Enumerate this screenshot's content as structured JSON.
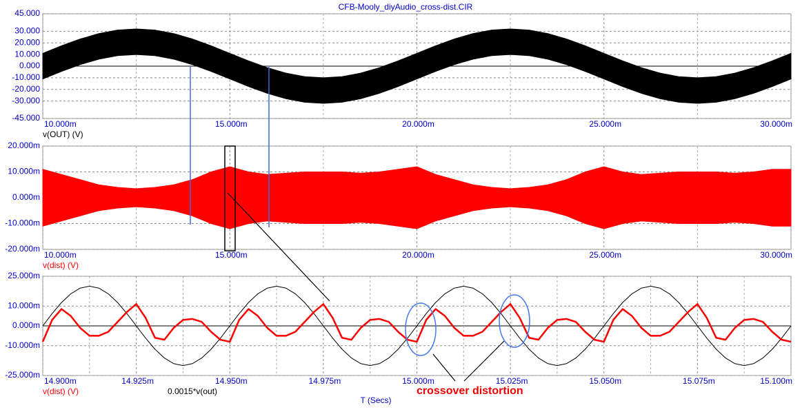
{
  "chart_data": [
    {
      "type": "band",
      "title": "CFB-Mooly_diyAudio_cross-dist.CIR",
      "x": [
        0.01,
        0.0105,
        0.011,
        0.0115,
        0.012,
        0.0125,
        0.013,
        0.0135,
        0.014,
        0.0145,
        0.015,
        0.0155,
        0.016,
        0.0165,
        0.017,
        0.0175,
        0.018,
        0.0185,
        0.019,
        0.0195,
        0.02,
        0.0205,
        0.021,
        0.0215,
        0.022,
        0.0225,
        0.023,
        0.0235,
        0.024,
        0.0245,
        0.025,
        0.0255,
        0.026,
        0.0265,
        0.027,
        0.0275,
        0.028,
        0.0285,
        0.029,
        0.0295,
        0.03
      ],
      "xlim": [
        0.01,
        0.03
      ],
      "xticks": [
        {
          "value": 0.01,
          "label": "10.000m"
        },
        {
          "value": 0.015,
          "label": "15.000m"
        },
        {
          "value": 0.02,
          "label": "20.000m"
        },
        {
          "value": 0.025,
          "label": "25.000m"
        },
        {
          "value": 0.03,
          "label": "30.000m"
        }
      ],
      "ylim": [
        -45,
        45
      ],
      "yticks": [
        {
          "value": 45,
          "label": "45.000"
        },
        {
          "value": 30,
          "label": "30.000"
        },
        {
          "value": 20,
          "label": "20.000"
        },
        {
          "value": 10,
          "label": "10.000"
        },
        {
          "value": 0,
          "label": "0.000"
        },
        {
          "value": -10,
          "label": "-10.000"
        },
        {
          "value": -20,
          "label": "-20.000"
        },
        {
          "value": -30,
          "label": "-30.000"
        },
        {
          "value": -45,
          "label": "-45.000"
        }
      ],
      "grid": true,
      "series": [
        {
          "name": "v(OUT) (V)",
          "color": "#000000",
          "upper": [
            11,
            17.5,
            23.3,
            28,
            31,
            32,
            31,
            28,
            23.3,
            17.5,
            11,
            4.5,
            -1.3,
            -6,
            -9,
            -10,
            -9,
            -6,
            -1.3,
            4.5,
            11,
            17.5,
            23.3,
            28,
            31,
            32,
            31,
            28,
            23.3,
            17.5,
            11,
            4.5,
            -1.3,
            -6,
            -9,
            -10,
            -9,
            -6,
            -1.3,
            4.5,
            11
          ],
          "lower": [
            -11,
            -4.5,
            1.3,
            6,
            9,
            10,
            9,
            6,
            1.3,
            -4.5,
            -11,
            -17.5,
            -23.3,
            -28,
            -31,
            -32,
            -31,
            -28,
            -23.3,
            -17.5,
            -11,
            -4.5,
            1.3,
            6,
            9,
            10,
            9,
            6,
            1.3,
            -4.5,
            -11,
            -17.5,
            -23.3,
            -28,
            -31,
            -32,
            -31,
            -28,
            -23.3,
            -17.5,
            -11
          ]
        }
      ]
    },
    {
      "type": "band",
      "x": [
        0.01,
        0.0105,
        0.011,
        0.0115,
        0.012,
        0.0125,
        0.013,
        0.0135,
        0.014,
        0.0145,
        0.015,
        0.0155,
        0.016,
        0.0165,
        0.017,
        0.0175,
        0.018,
        0.0185,
        0.019,
        0.0195,
        0.02,
        0.0205,
        0.021,
        0.0215,
        0.022,
        0.0225,
        0.023,
        0.0235,
        0.024,
        0.0245,
        0.025,
        0.0255,
        0.026,
        0.0265,
        0.027,
        0.0275,
        0.028,
        0.0285,
        0.029,
        0.0295,
        0.03
      ],
      "xlim": [
        0.01,
        0.03
      ],
      "xticks": [
        {
          "value": 0.01,
          "label": "10.000m"
        },
        {
          "value": 0.015,
          "label": "15.000m"
        },
        {
          "value": 0.02,
          "label": "20.000m"
        },
        {
          "value": 0.025,
          "label": "25.000m"
        },
        {
          "value": 0.03,
          "label": "30.000m"
        }
      ],
      "ylim": [
        -0.02,
        0.02
      ],
      "yticks": [
        {
          "value": 0.02,
          "label": "20.000m"
        },
        {
          "value": 0.01,
          "label": "10.000m"
        },
        {
          "value": 0,
          "label": "0.000m"
        },
        {
          "value": -0.01,
          "label": "-10.000m"
        },
        {
          "value": -0.02,
          "label": "-20.000m"
        }
      ],
      "grid": true,
      "series": [
        {
          "name": "v(dist) (V)",
          "color": "#ff0000",
          "upper": [
            0.011,
            0.009,
            0.007,
            0.005,
            0.004,
            0.0035,
            0.004,
            0.005,
            0.007,
            0.01,
            0.012,
            0.01,
            0.009,
            0.0095,
            0.01,
            0.01,
            0.01,
            0.0095,
            0.01,
            0.011,
            0.012,
            0.009,
            0.007,
            0.005,
            0.004,
            0.0035,
            0.004,
            0.005,
            0.007,
            0.01,
            0.012,
            0.01,
            0.009,
            0.0095,
            0.01,
            0.01,
            0.01,
            0.0095,
            0.01,
            0.011,
            0.011
          ],
          "lower": [
            -0.011,
            -0.009,
            -0.007,
            -0.005,
            -0.004,
            -0.0035,
            -0.004,
            -0.005,
            -0.007,
            -0.01,
            -0.012,
            -0.01,
            -0.009,
            -0.0095,
            -0.01,
            -0.01,
            -0.01,
            -0.0095,
            -0.01,
            -0.011,
            -0.012,
            -0.009,
            -0.007,
            -0.005,
            -0.004,
            -0.0035,
            -0.004,
            -0.005,
            -0.007,
            -0.01,
            -0.012,
            -0.01,
            -0.009,
            -0.0095,
            -0.01,
            -0.01,
            -0.01,
            -0.0095,
            -0.01,
            -0.011,
            -0.011
          ]
        }
      ]
    },
    {
      "type": "line",
      "x_label": "T (Secs)",
      "annotation": "crossover distortion",
      "x": [
        0.0149,
        0.0149025,
        0.014905,
        0.0149075,
        0.01491,
        0.0149125,
        0.014915,
        0.0149175,
        0.01492,
        0.0149225,
        0.014925,
        0.0149275,
        0.01493,
        0.0149325,
        0.014935,
        0.0149375,
        0.01494,
        0.0149425,
        0.014945,
        0.0149475,
        0.01495,
        0.0149525,
        0.014955,
        0.0149575,
        0.01496,
        0.0149625,
        0.014965,
        0.0149675,
        0.01497,
        0.0149725,
        0.014975,
        0.0149775,
        0.01498,
        0.0149825,
        0.014985,
        0.0149875,
        0.01499,
        0.0149925,
        0.014995,
        0.0149975,
        0.015,
        0.0150025,
        0.015005,
        0.0150075,
        0.01501,
        0.0150125,
        0.015015,
        0.0150175,
        0.01502,
        0.0150225,
        0.015025,
        0.0150275,
        0.01503,
        0.0150325,
        0.015035,
        0.0150375,
        0.01504,
        0.0150425,
        0.015045,
        0.0150475,
        0.01505,
        0.0150525,
        0.015055,
        0.0150575,
        0.01506,
        0.0150625,
        0.015065,
        0.0150675,
        0.01507,
        0.0150725,
        0.015075,
        0.0150775,
        0.01508,
        0.0150825,
        0.015085,
        0.0150875,
        0.01509,
        0.0150925,
        0.015095,
        0.0150975,
        0.0151
      ],
      "xlim": [
        0.0149,
        0.0151
      ],
      "xticks": [
        {
          "value": 0.0149,
          "label": "14.900m"
        },
        {
          "value": 0.014925,
          "label": "14.925m"
        },
        {
          "value": 0.01495,
          "label": "14.950m"
        },
        {
          "value": 0.014975,
          "label": "14.975m"
        },
        {
          "value": 0.015,
          "label": "15.000m"
        },
        {
          "value": 0.015025,
          "label": "15.025m"
        },
        {
          "value": 0.01505,
          "label": "15.050m"
        },
        {
          "value": 0.015075,
          "label": "15.075m"
        },
        {
          "value": 0.0151,
          "label": "15.100m"
        }
      ],
      "ylim": [
        -0.025,
        0.025
      ],
      "yticks": [
        {
          "value": 0.025,
          "label": "25.000m"
        },
        {
          "value": 0.01,
          "label": "10.000m"
        },
        {
          "value": 0,
          "label": "0.000m"
        },
        {
          "value": -0.01,
          "label": "-10.000m"
        },
        {
          "value": -0.025,
          "label": "-25.000m"
        }
      ],
      "grid": true,
      "series": [
        {
          "name": "v(dist) (V)",
          "color": "#ff0000",
          "values": [
            -0.008,
            0.003,
            0.0085,
            0.005,
            -0.001,
            -0.005,
            -0.005,
            -0.003,
            0.002,
            0.007,
            0.011,
            0.004,
            -0.006,
            -0.007,
            -0.001,
            0.003,
            0.0035,
            0.002,
            -0.003,
            -0.007,
            -0.008,
            0.003,
            0.0085,
            0.005,
            -0.001,
            -0.005,
            -0.005,
            -0.003,
            0.002,
            0.007,
            0.011,
            0.004,
            -0.006,
            -0.007,
            -0.001,
            0.003,
            0.0035,
            0.002,
            -0.003,
            -0.007,
            -0.008,
            0.003,
            0.0085,
            0.005,
            -0.001,
            -0.005,
            -0.005,
            -0.003,
            0.002,
            0.007,
            0.011,
            0.004,
            -0.006,
            -0.007,
            -0.001,
            0.003,
            0.0035,
            0.002,
            -0.003,
            -0.007,
            -0.008,
            0.003,
            0.0085,
            0.005,
            -0.001,
            -0.005,
            -0.005,
            -0.003,
            0.002,
            0.007,
            0.011,
            0.004,
            -0.006,
            -0.007,
            -0.001,
            0.003,
            0.0035,
            0.002,
            -0.003,
            -0.007,
            -0.008
          ]
        },
        {
          "name": "0.0015*v(out)",
          "color": "#000000",
          "values": [
            0,
            0.00618,
            0.01176,
            0.01618,
            0.01902,
            0.02,
            0.01902,
            0.01618,
            0.01176,
            0.00618,
            0,
            -0.00618,
            -0.01176,
            -0.01618,
            -0.01902,
            -0.02,
            -0.01902,
            -0.01618,
            -0.01176,
            -0.00618,
            0,
            0.00618,
            0.01176,
            0.01618,
            0.01902,
            0.02,
            0.01902,
            0.01618,
            0.01176,
            0.00618,
            0,
            -0.00618,
            -0.01176,
            -0.01618,
            -0.01902,
            -0.02,
            -0.01902,
            -0.01618,
            -0.01176,
            -0.00618,
            0,
            0.00618,
            0.01176,
            0.01618,
            0.01902,
            0.02,
            0.01902,
            0.01618,
            0.01176,
            0.00618,
            0,
            -0.00618,
            -0.01176,
            -0.01618,
            -0.01902,
            -0.02,
            -0.01902,
            -0.01618,
            -0.01176,
            -0.00618,
            0,
            0.00618,
            0.01176,
            0.01618,
            0.01902,
            0.02,
            0.01902,
            0.01618,
            0.01176,
            0.00618,
            0,
            -0.00618,
            -0.01176,
            -0.01618,
            -0.01902,
            -0.02,
            -0.01902,
            -0.01618,
            -0.01176,
            -0.00618,
            0
          ]
        }
      ]
    }
  ]
}
